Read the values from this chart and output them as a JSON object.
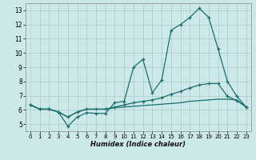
{
  "xlabel": "Humidex (Indice chaleur)",
  "xlim": [
    -0.5,
    23.5
  ],
  "ylim": [
    4.5,
    13.5
  ],
  "yticks": [
    5,
    6,
    7,
    8,
    9,
    10,
    11,
    12,
    13
  ],
  "xticks": [
    0,
    1,
    2,
    3,
    4,
    5,
    6,
    7,
    8,
    9,
    10,
    11,
    12,
    13,
    14,
    15,
    16,
    17,
    18,
    19,
    20,
    21,
    22,
    23
  ],
  "bg_color": "#cce8e8",
  "line_color": "#1a6e6e",
  "grid_color": "#aacccc",
  "line1_y": [
    6.35,
    6.05,
    6.05,
    5.85,
    4.85,
    5.5,
    5.8,
    5.75,
    5.75,
    6.5,
    6.6,
    9.0,
    9.55,
    7.2,
    8.1,
    11.6,
    12.0,
    12.5,
    13.15,
    12.5,
    10.3,
    8.0,
    6.95,
    6.2
  ],
  "line2_y": [
    6.35,
    6.05,
    6.05,
    5.85,
    5.5,
    5.85,
    6.05,
    6.05,
    6.05,
    6.2,
    6.35,
    6.5,
    6.6,
    6.7,
    6.85,
    7.1,
    7.3,
    7.55,
    7.75,
    7.85,
    7.85,
    6.95,
    6.65,
    6.2
  ],
  "line3_y": [
    6.35,
    6.05,
    6.05,
    5.85,
    5.5,
    5.85,
    6.05,
    6.05,
    6.05,
    6.15,
    6.2,
    6.25,
    6.3,
    6.35,
    6.4,
    6.45,
    6.5,
    6.6,
    6.65,
    6.7,
    6.75,
    6.75,
    6.7,
    6.2
  ]
}
